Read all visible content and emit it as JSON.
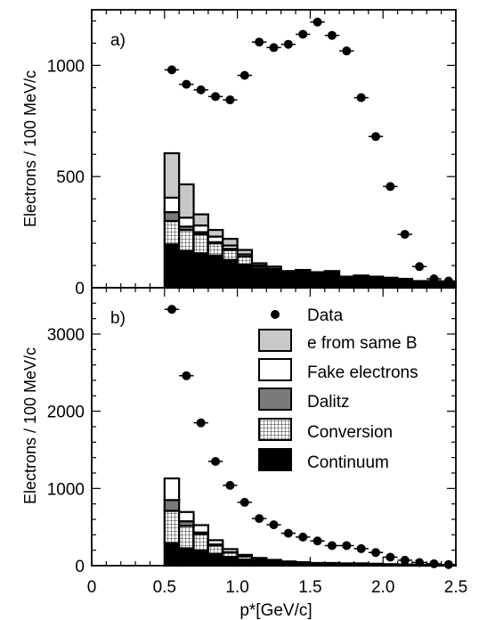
{
  "chart_data": [
    {
      "panel": "a)",
      "type": "bar",
      "ylabel": "Electrons / 100 MeV/c",
      "xlim": [
        0,
        2.5
      ],
      "ylim": [
        0,
        1250
      ],
      "yticks": [
        0,
        500,
        1000
      ],
      "data": {
        "x": [
          0.55,
          0.65,
          0.75,
          0.85,
          0.95,
          1.05,
          1.15,
          1.25,
          1.35,
          1.45,
          1.55,
          1.65,
          1.75,
          1.85,
          1.95,
          2.05,
          2.15,
          2.25,
          2.35,
          2.45
        ],
        "y": [
          980,
          915,
          890,
          860,
          845,
          955,
          1105,
          1080,
          1095,
          1140,
          1195,
          1135,
          1065,
          855,
          680,
          455,
          240,
          95,
          40,
          30
        ]
      },
      "stack_edges": [
        0.5,
        0.6,
        0.7,
        0.8,
        0.9,
        1.0,
        1.1,
        1.2,
        1.3,
        1.4,
        1.5,
        1.6,
        1.7,
        1.8,
        1.9,
        2.0,
        2.1,
        2.2,
        2.3,
        2.4,
        2.5
      ],
      "stack": [
        {
          "name": "Continuum",
          "values": [
            195,
            165,
            155,
            145,
            125,
            105,
            85,
            75,
            75,
            80,
            70,
            75,
            50,
            55,
            50,
            45,
            40,
            30,
            30,
            25
          ]
        },
        {
          "name": "Conversion",
          "values": [
            105,
            95,
            85,
            55,
            45,
            35,
            10,
            5,
            0,
            0,
            0,
            0,
            0,
            0,
            0,
            0,
            0,
            0,
            0,
            0
          ]
        },
        {
          "name": "Dalitz",
          "values": [
            40,
            15,
            10,
            5,
            5,
            0,
            0,
            0,
            0,
            0,
            0,
            0,
            0,
            0,
            0,
            0,
            0,
            0,
            0,
            0
          ]
        },
        {
          "name": "Fake electrons",
          "values": [
            65,
            40,
            30,
            25,
            15,
            10,
            5,
            5,
            0,
            0,
            0,
            0,
            0,
            0,
            0,
            0,
            0,
            0,
            0,
            0
          ]
        },
        {
          "name": "e from same B",
          "values": [
            200,
            150,
            50,
            30,
            30,
            20,
            10,
            10,
            0,
            0,
            0,
            0,
            0,
            0,
            0,
            0,
            0,
            0,
            0,
            0
          ]
        }
      ]
    },
    {
      "panel": "b)",
      "type": "bar",
      "ylabel": "Electrons / 100 MeV/c",
      "xlabel": "p*[GeV/c]",
      "xlim": [
        0,
        2.5
      ],
      "ylim": [
        0,
        3600
      ],
      "yticks": [
        0,
        1000,
        2000,
        3000
      ],
      "xticks": [
        "0",
        "0.5",
        "1.0",
        "1.5",
        "2.0",
        "2.5"
      ],
      "data": {
        "x": [
          0.55,
          0.65,
          0.75,
          0.85,
          0.95,
          1.05,
          1.15,
          1.25,
          1.35,
          1.45,
          1.55,
          1.65,
          1.75,
          1.85,
          1.95,
          2.05,
          2.15,
          2.25,
          2.35,
          2.45
        ],
        "y": [
          3320,
          2460,
          1850,
          1350,
          1040,
          820,
          610,
          530,
          420,
          370,
          320,
          260,
          260,
          220,
          170,
          110,
          70,
          40,
          25,
          15
        ]
      },
      "stack_edges": [
        0.5,
        0.6,
        0.7,
        0.8,
        0.9,
        1.0,
        1.1,
        1.2,
        1.3,
        1.4,
        1.5,
        1.6,
        1.7,
        1.8,
        1.9,
        2.0,
        2.1,
        2.2,
        2.3,
        2.4,
        2.5
      ],
      "stack": [
        {
          "name": "Continuum",
          "values": [
            290,
            225,
            195,
            150,
            110,
            80,
            65,
            55,
            45,
            40,
            35,
            35,
            30,
            30,
            25,
            20,
            15,
            10,
            10,
            5
          ]
        },
        {
          "name": "Conversion",
          "values": [
            420,
            290,
            210,
            110,
            60,
            40,
            20,
            10,
            5,
            0,
            0,
            0,
            0,
            0,
            0,
            0,
            0,
            0,
            0,
            0
          ]
        },
        {
          "name": "Dalitz",
          "values": [
            140,
            60,
            25,
            15,
            5,
            0,
            0,
            0,
            0,
            0,
            0,
            0,
            0,
            0,
            0,
            0,
            0,
            0,
            0,
            0
          ]
        },
        {
          "name": "Fake electrons",
          "values": [
            280,
            120,
            95,
            55,
            40,
            20,
            15,
            10,
            5,
            5,
            0,
            0,
            0,
            0,
            0,
            0,
            0,
            0,
            0,
            0
          ]
        },
        {
          "name": "e from same B",
          "values": [
            0,
            0,
            0,
            0,
            0,
            0,
            0,
            0,
            0,
            0,
            0,
            0,
            0,
            0,
            0,
            0,
            0,
            0,
            0,
            0
          ]
        }
      ]
    }
  ],
  "legend": [
    {
      "key": "data",
      "label": "Data"
    },
    {
      "key": "sameB",
      "label": "e from same B"
    },
    {
      "key": "fake",
      "label": "Fake electrons"
    },
    {
      "key": "dalitz",
      "label": "Dalitz"
    },
    {
      "key": "conversion",
      "label": "Conversion"
    },
    {
      "key": "continuum",
      "label": "Continuum"
    }
  ],
  "colors": {
    "Continuum": "#000000",
    "Conversion": "pattern:grid",
    "Dalitz": "#7a7a7a",
    "Fake electrons": "#ffffff",
    "e from same B": "#c8c8c8"
  }
}
